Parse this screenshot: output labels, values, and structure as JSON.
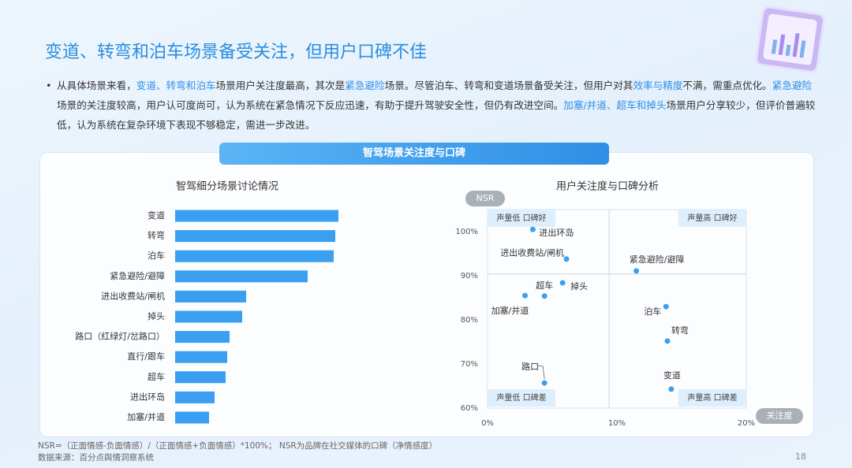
{
  "title": "变道、转弯和泊车场景备受关注，但用户口碑不佳",
  "paragraph": [
    {
      "text": "从具体场景来看，",
      "color": "#333333"
    },
    {
      "text": "变道、转弯和泊车",
      "color": "#2f8fe6"
    },
    {
      "text": "场景用户关注度最高，其次是",
      "color": "#333333"
    },
    {
      "text": "紧急避险",
      "color": "#2f8fe6"
    },
    {
      "text": "场景。尽管泊车、转弯和变道场景备受关注，但用户对其",
      "color": "#333333"
    },
    {
      "text": "效率与精度",
      "color": "#2f8fe6"
    },
    {
      "text": "不满，需重点优化。",
      "color": "#333333"
    },
    {
      "text": "紧急避险",
      "color": "#2f8fe6"
    },
    {
      "text": "场景的关注度较高，用户认可度尚可，认为系统在紧急情况下反应迅速，有助于提升驾驶安全性，但仍有改进空间。",
      "color": "#333333"
    },
    {
      "text": "加塞/并道、超车和掉头",
      "color": "#2f8fe6"
    },
    {
      "text": "场景用户分享较少，但评价普遍较低，认为系统在复杂环境下表现不够稳定，需进一步改进。",
      "color": "#333333"
    }
  ],
  "panel_title": "智驾场景关注度与口碑",
  "chart_data": [
    {
      "type": "bar",
      "orientation": "horizontal",
      "title": "智驾细分场景讨论情况",
      "categories": [
        "变道",
        "转弯",
        "泊车",
        "紧急避险/避障",
        "进出收费站/闸机",
        "掉头",
        "路口（红绿灯/岔路口）",
        "直行/跟车",
        "超车",
        "进出环岛",
        "加塞/并道"
      ],
      "values": [
        207,
        203,
        201,
        168,
        90,
        85,
        69,
        66,
        64,
        50,
        43
      ],
      "color": "#3a9ff0",
      "xlim": [
        0,
        220
      ]
    },
    {
      "type": "scatter",
      "title": "用户关注度与口碑分析",
      "xlabel": "关注度",
      "ylabel": "NSR",
      "labels": [
        "进出环岛",
        "进出收费站/闸机",
        "紧急避险/避障",
        "超车",
        "掉头",
        "加塞/并道",
        "泊车",
        "转弯",
        "路口",
        "变道"
      ],
      "x": [
        3.5,
        6.1,
        11.5,
        4.4,
        5.8,
        2.9,
        13.8,
        13.9,
        4.4,
        14.2
      ],
      "values": [
        100.5,
        93.8,
        91.1,
        85.4,
        88.4,
        85.5,
        83.0,
        75.2,
        65.7,
        64.3
      ],
      "color": "#3a9ff0",
      "xlim": [
        0,
        20
      ],
      "ylim": [
        60,
        105
      ],
      "xticks": [
        {
          "value": 0,
          "label": "0%"
        },
        {
          "value": 10,
          "label": "10%"
        },
        {
          "value": 20,
          "label": "20%"
        }
      ],
      "yticks": [
        {
          "value": 60,
          "label": "60%"
        },
        {
          "value": 70,
          "label": "70%"
        },
        {
          "value": 80,
          "label": "80%"
        },
        {
          "value": 90,
          "label": "90%"
        },
        {
          "value": 100,
          "label": "100%"
        }
      ],
      "xref": 9.4,
      "yref": 90.4,
      "quadrant_labels": [
        "声量低 口碑好",
        "声量高 口碑好",
        "声量低 口碑差",
        "声量高 口碑差"
      ]
    }
  ],
  "footnotes": [
    "NSR=（正面情感-负面情感）/（正面情感+负面情感）*100%； NSR为品牌在社交媒体的口碑（净情感度）",
    "数据来源：百分点舆情洞察系统"
  ],
  "page_number": "18"
}
